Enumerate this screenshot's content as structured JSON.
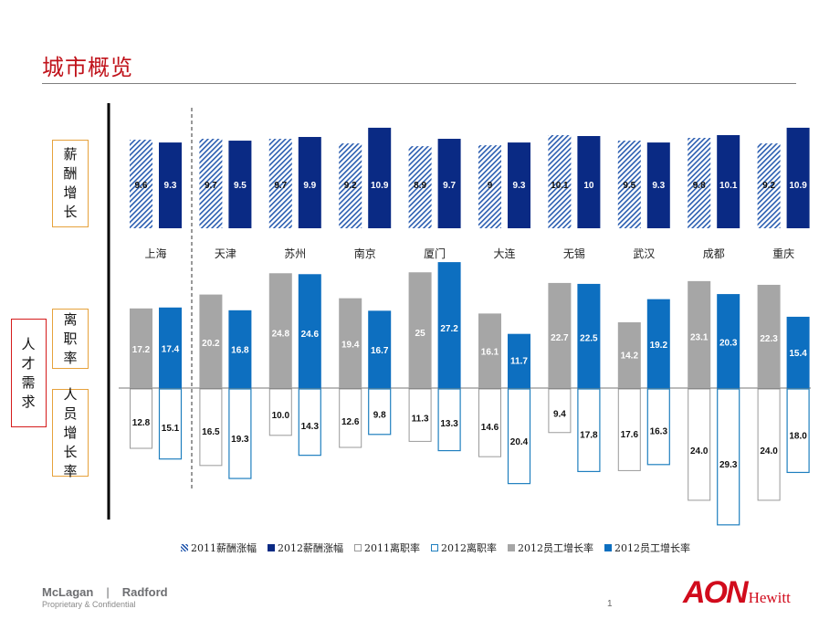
{
  "title": "城市概览",
  "labels": {
    "salary_growth": "薪酬增长",
    "turnover": "离职率",
    "headcount_growth": "人员增长率",
    "talent_demand": "人才需求"
  },
  "legend": {
    "salary_2011": "2011薪酬涨幅",
    "salary_2012": "2012薪酬涨幅",
    "turnover_2011": "2011离职率",
    "turnover_2012": "2012离职率",
    "headcount_2012_gray": "2012员工增长率",
    "headcount_2012_blue": "2012员工增长率"
  },
  "footer": {
    "brand_left": "McLagan",
    "separator": "|",
    "brand_right": "Radford",
    "confidential": "Proprietary & Confidential",
    "page": "1",
    "logo_main": "AON",
    "logo_sub": "Hewitt"
  },
  "colors": {
    "navy": "#0a2a84",
    "hatch": "#2a5db0",
    "gray": "#a6a6a6",
    "blue": "#0d6fc0",
    "title_red": "#c0121a"
  },
  "chart_data": {
    "type": "bar",
    "categories": [
      "上海",
      "天津",
      "苏州",
      "南京",
      "厦门",
      "大连",
      "无锡",
      "武汉",
      "成都",
      "重庆"
    ],
    "panels": [
      {
        "name": "salary_growth",
        "unit": "%",
        "series": [
          {
            "name": "2011薪酬涨幅",
            "values": [
              9.6,
              9.7,
              9.7,
              9.2,
              8.9,
              9,
              10.1,
              9.5,
              9.8,
              9.2
            ]
          },
          {
            "name": "2012薪酬涨幅",
            "values": [
              9.3,
              9.5,
              9.9,
              10.9,
              9.7,
              9.3,
              10,
              9.3,
              10.1,
              10.9
            ]
          }
        ]
      },
      {
        "name": "turnover",
        "unit": "%",
        "series": [
          {
            "name": "2011离职率",
            "values": [
              17.2,
              20.2,
              24.8,
              19.4,
              25,
              16.1,
              22.7,
              14.2,
              23.1,
              22.3
            ]
          },
          {
            "name": "2012离职率",
            "values": [
              17.4,
              16.8,
              24.6,
              16.7,
              27.2,
              11.7,
              22.5,
              19.2,
              20.3,
              15.4
            ]
          }
        ]
      },
      {
        "name": "headcount_growth",
        "unit": "%",
        "series": [
          {
            "name": "2011",
            "values": [
              12.8,
              16.5,
              10.0,
              12.6,
              11.3,
              14.6,
              9.4,
              17.6,
              24.0,
              24.0
            ]
          },
          {
            "name": "2012",
            "values": [
              15.1,
              19.3,
              14.3,
              9.8,
              13.3,
              20.4,
              17.8,
              16.3,
              29.3,
              18.0
            ]
          }
        ]
      }
    ]
  }
}
